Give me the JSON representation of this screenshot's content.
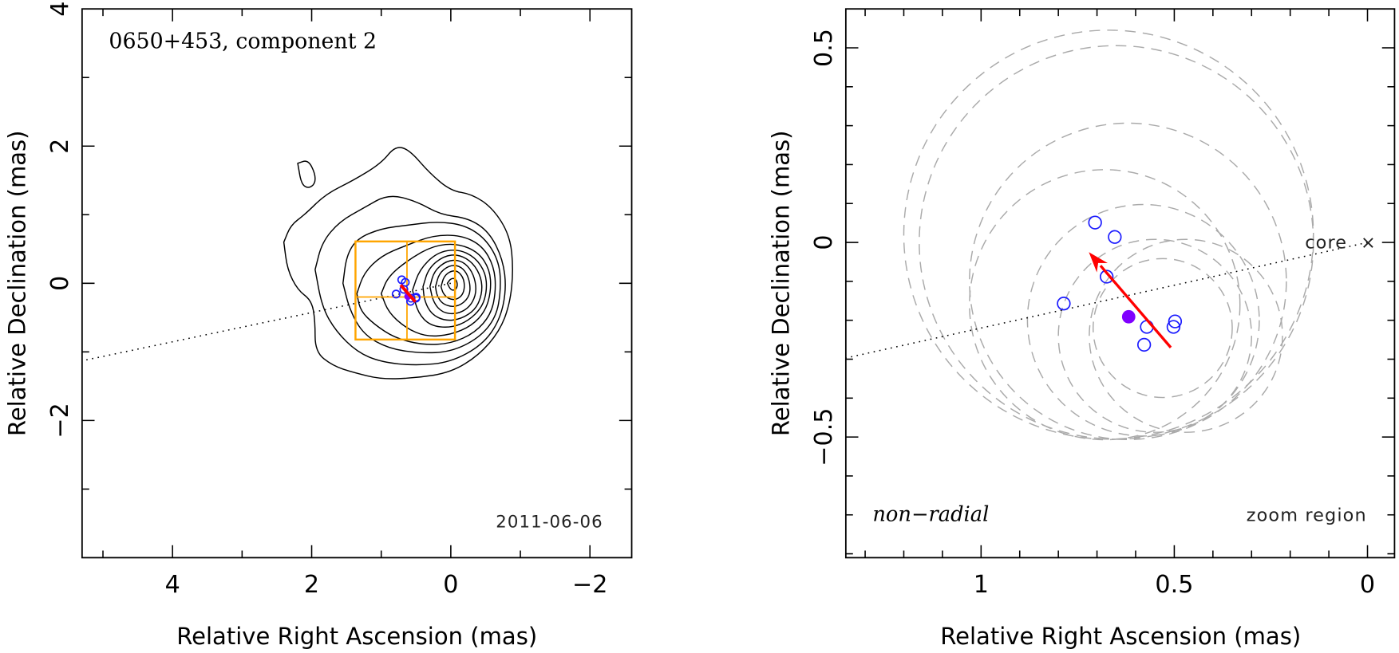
{
  "figure": {
    "left_panel": {
      "title": "0650+453, component 2",
      "date": "2011-06-06",
      "xlabel": "Relative Right Ascension (mas)",
      "ylabel": "Relative Declination (mas)"
    },
    "right_panel": {
      "annotation_left": "non−radial",
      "annotation_right": "zoom region",
      "core_label": "core",
      "core_marker": "×",
      "xlabel": "Relative Right Ascension (mas)",
      "ylabel": "Relative Declination (mas)"
    }
  },
  "colors": {
    "zoom_box": "#ffa500",
    "epoch_circles": "#1a1aff",
    "mean_position": "#8000ff",
    "velocity_arrow": "#ff0000",
    "error_circles": "#aaaaaa",
    "contours": "#000000"
  },
  "chart_data": [
    {
      "type": "contour",
      "title": "0650+453, component 2",
      "annotation": "2011-06-06",
      "xlabel": "Relative Right Ascension (mas)",
      "ylabel": "Relative Declination (mas)",
      "xlim": [
        5.3,
        -2.6
      ],
      "ylim": [
        -4.0,
        4.0
      ],
      "xticks": [
        4,
        2,
        0,
        -2
      ],
      "xtick_labels": [
        "4",
        "2",
        "0",
        "−2"
      ],
      "yticks": [
        -2,
        0,
        2,
        4
      ],
      "ytick_labels": [
        "−2",
        "0",
        "2",
        "4"
      ],
      "x_minor_step": 1,
      "y_minor_step": 1,
      "grid": false,
      "zoom_box": {
        "x": [
          1.37,
          -0.06
        ],
        "y": [
          -0.82,
          0.61
        ],
        "cross_x": 0.63,
        "cross_y": -0.2
      },
      "jet_direction_line": {
        "from": [
          0.0,
          0.0
        ],
        "to": [
          5.3,
          -1.13
        ]
      },
      "contours_approx": [
        {
          "level": 1,
          "points": [
            [
              2.4,
              0.6
            ],
            [
              2.3,
              0.85
            ],
            [
              2.1,
              1.0
            ],
            [
              1.8,
              1.3
            ],
            [
              1.4,
              1.5
            ],
            [
              1.0,
              1.75
            ],
            [
              0.8,
              2.0
            ],
            [
              0.6,
              1.95
            ],
            [
              0.3,
              1.6
            ],
            [
              0.0,
              1.35
            ],
            [
              -0.3,
              1.3
            ],
            [
              -0.6,
              1.1
            ],
            [
              -0.85,
              0.7
            ],
            [
              -0.9,
              0.2
            ],
            [
              -0.85,
              -0.3
            ],
            [
              -0.7,
              -0.7
            ],
            [
              -0.4,
              -1.05
            ],
            [
              0.0,
              -1.3
            ],
            [
              0.5,
              -1.38
            ],
            [
              1.0,
              -1.4
            ],
            [
              1.4,
              -1.3
            ],
            [
              1.7,
              -1.2
            ],
            [
              1.95,
              -1.0
            ],
            [
              1.95,
              -0.55
            ],
            [
              2.0,
              -0.25
            ],
            [
              2.2,
              -0.1
            ],
            [
              2.35,
              0.2
            ],
            [
              2.4,
              0.6
            ]
          ]
        },
        {
          "level": 2,
          "points": [
            [
              1.95,
              0.2
            ],
            [
              1.85,
              0.6
            ],
            [
              1.6,
              0.9
            ],
            [
              1.25,
              1.1
            ],
            [
              0.9,
              1.3
            ],
            [
              0.5,
              1.2
            ],
            [
              0.15,
              1.0
            ],
            [
              -0.25,
              0.95
            ],
            [
              -0.55,
              0.75
            ],
            [
              -0.75,
              0.35
            ],
            [
              -0.8,
              -0.1
            ],
            [
              -0.7,
              -0.55
            ],
            [
              -0.45,
              -0.9
            ],
            [
              0.0,
              -1.15
            ],
            [
              0.5,
              -1.2
            ],
            [
              1.0,
              -1.15
            ],
            [
              1.35,
              -1.0
            ],
            [
              1.65,
              -0.7
            ],
            [
              1.85,
              -0.35
            ],
            [
              1.95,
              0.2
            ]
          ]
        },
        {
          "level": 3,
          "points": [
            [
              1.55,
              0.0
            ],
            [
              1.5,
              0.4
            ],
            [
              1.35,
              0.65
            ],
            [
              1.0,
              0.8
            ],
            [
              0.6,
              0.85
            ],
            [
              0.2,
              0.9
            ],
            [
              -0.2,
              0.85
            ],
            [
              -0.5,
              0.65
            ],
            [
              -0.7,
              0.3
            ],
            [
              -0.72,
              -0.1
            ],
            [
              -0.65,
              -0.5
            ],
            [
              -0.4,
              -0.8
            ],
            [
              0.0,
              -1.0
            ],
            [
              0.45,
              -1.02
            ],
            [
              0.9,
              -0.95
            ],
            [
              1.25,
              -0.75
            ],
            [
              1.45,
              -0.4
            ],
            [
              1.55,
              0.0
            ]
          ]
        },
        {
          "level": 4,
          "points": [
            [
              1.35,
              -0.15
            ],
            [
              1.25,
              0.15
            ],
            [
              1.0,
              0.4
            ],
            [
              0.65,
              0.55
            ],
            [
              0.25,
              0.7
            ],
            [
              -0.15,
              0.7
            ],
            [
              -0.45,
              0.55
            ],
            [
              -0.62,
              0.25
            ],
            [
              -0.65,
              -0.1
            ],
            [
              -0.58,
              -0.45
            ],
            [
              -0.35,
              -0.72
            ],
            [
              0.0,
              -0.88
            ],
            [
              0.4,
              -0.9
            ],
            [
              0.8,
              -0.8
            ],
            [
              1.1,
              -0.6
            ],
            [
              1.3,
              -0.4
            ],
            [
              1.35,
              -0.15
            ]
          ]
        },
        {
          "level": 5,
          "points": [
            [
              1.0,
              -0.15
            ],
            [
              0.9,
              0.1
            ],
            [
              0.6,
              0.35
            ],
            [
              0.25,
              0.55
            ],
            [
              -0.1,
              0.58
            ],
            [
              -0.4,
              0.45
            ],
            [
              -0.56,
              0.2
            ],
            [
              -0.58,
              -0.1
            ],
            [
              -0.5,
              -0.4
            ],
            [
              -0.3,
              -0.62
            ],
            [
              0.0,
              -0.75
            ],
            [
              0.35,
              -0.78
            ],
            [
              0.65,
              -0.65
            ],
            [
              0.9,
              -0.42
            ],
            [
              1.0,
              -0.15
            ]
          ]
        },
        {
          "level": 6,
          "points": [
            [
              0.55,
              -0.1
            ],
            [
              0.45,
              0.2
            ],
            [
              0.2,
              0.45
            ],
            [
              -0.1,
              0.5
            ],
            [
              -0.35,
              0.38
            ],
            [
              -0.5,
              0.15
            ],
            [
              -0.52,
              -0.1
            ],
            [
              -0.45,
              -0.35
            ],
            [
              -0.25,
              -0.55
            ],
            [
              0.0,
              -0.65
            ],
            [
              0.3,
              -0.62
            ],
            [
              0.48,
              -0.42
            ],
            [
              0.55,
              -0.1
            ]
          ]
        },
        {
          "level": 7,
          "points": [
            [
              0.4,
              -0.05
            ],
            [
              0.32,
              0.22
            ],
            [
              0.1,
              0.4
            ],
            [
              -0.12,
              0.42
            ],
            [
              -0.32,
              0.3
            ],
            [
              -0.44,
              0.08
            ],
            [
              -0.45,
              -0.15
            ],
            [
              -0.36,
              -0.38
            ],
            [
              -0.15,
              -0.52
            ],
            [
              0.08,
              -0.55
            ],
            [
              0.28,
              -0.45
            ],
            [
              0.38,
              -0.25
            ],
            [
              0.4,
              -0.05
            ]
          ]
        },
        {
          "level": 8,
          "points": [
            [
              0.3,
              -0.05
            ],
            [
              0.24,
              0.18
            ],
            [
              0.06,
              0.33
            ],
            [
              -0.13,
              0.34
            ],
            [
              -0.28,
              0.22
            ],
            [
              -0.36,
              0.02
            ],
            [
              -0.36,
              -0.18
            ],
            [
              -0.26,
              -0.36
            ],
            [
              -0.08,
              -0.45
            ],
            [
              0.12,
              -0.43
            ],
            [
              0.25,
              -0.28
            ],
            [
              0.3,
              -0.05
            ]
          ]
        },
        {
          "level": 9,
          "points": [
            [
              0.22,
              -0.05
            ],
            [
              0.17,
              0.14
            ],
            [
              0.03,
              0.26
            ],
            [
              -0.12,
              0.26
            ],
            [
              -0.23,
              0.15
            ],
            [
              -0.28,
              -0.02
            ],
            [
              -0.27,
              -0.18
            ],
            [
              -0.17,
              -0.3
            ],
            [
              -0.03,
              -0.35
            ],
            [
              0.12,
              -0.3
            ],
            [
              0.2,
              -0.18
            ],
            [
              0.22,
              -0.05
            ]
          ]
        },
        {
          "level": 10,
          "points": [
            [
              0.14,
              -0.05
            ],
            [
              0.1,
              0.1
            ],
            [
              0.0,
              0.18
            ],
            [
              -0.1,
              0.18
            ],
            [
              -0.18,
              0.08
            ],
            [
              -0.2,
              -0.05
            ],
            [
              -0.17,
              -0.17
            ],
            [
              -0.08,
              -0.24
            ],
            [
              0.03,
              -0.23
            ],
            [
              0.11,
              -0.15
            ],
            [
              0.14,
              -0.05
            ]
          ]
        },
        {
          "level": 11,
          "points": [
            [
              0.05,
              0.0
            ],
            [
              0.0,
              0.07
            ],
            [
              -0.07,
              0.07
            ],
            [
              -0.1,
              -0.02
            ],
            [
              -0.07,
              -0.1
            ],
            [
              0.0,
              -0.1
            ],
            [
              0.05,
              0.0
            ]
          ]
        },
        {
          "level": 1,
          "points": [
            [
              2.2,
              1.75
            ],
            [
              2.05,
              1.8
            ],
            [
              1.95,
              1.6
            ],
            [
              1.95,
              1.45
            ],
            [
              2.05,
              1.38
            ],
            [
              2.15,
              1.45
            ],
            [
              2.2,
              1.75
            ]
          ]
        }
      ],
      "epoch_positions_approx": [
        [
          0.705,
          0.051
        ],
        [
          0.654,
          0.014
        ],
        [
          0.675,
          -0.088
        ],
        [
          0.786,
          -0.157
        ],
        [
          0.571,
          -0.217
        ],
        [
          0.578,
          -0.263
        ],
        [
          0.498,
          -0.203
        ],
        [
          0.502,
          -0.217
        ]
      ],
      "mean_position": [
        0.618,
        -0.191
      ],
      "velocity_arrow": {
        "from": [
          0.509,
          -0.27
        ],
        "to": [
          0.721,
          -0.025
        ]
      }
    },
    {
      "type": "scatter",
      "title": "zoom region",
      "annotation": "non−radial",
      "xlabel": "Relative Right Ascension (mas)",
      "ylabel": "Relative Declination (mas)",
      "xlim": [
        1.35,
        -0.07
      ],
      "ylim": [
        -0.81,
        0.6
      ],
      "xticks": [
        1,
        0.5,
        0
      ],
      "xtick_labels": [
        "1",
        "0.5",
        "0"
      ],
      "yticks": [
        -0.5,
        0,
        0.5
      ],
      "ytick_labels": [
        "−0.5",
        "0",
        "0.5"
      ],
      "x_minor_step": 0.1,
      "y_minor_step": 0.1,
      "grid": false,
      "core": [
        0.0,
        0.0
      ],
      "jet_direction_line": {
        "from": [
          0.0,
          0.0
        ],
        "to": [
          1.35,
          -0.297
        ]
      },
      "epoch_positions": [
        {
          "x": 0.705,
          "y": 0.051
        },
        {
          "x": 0.654,
          "y": 0.014
        },
        {
          "x": 0.675,
          "y": -0.088
        },
        {
          "x": 0.786,
          "y": -0.157
        },
        {
          "x": 0.571,
          "y": -0.217
        },
        {
          "x": 0.578,
          "y": -0.263
        },
        {
          "x": 0.498,
          "y": -0.203
        },
        {
          "x": 0.502,
          "y": -0.217
        }
      ],
      "mean_position": {
        "x": 0.618,
        "y": -0.191
      },
      "velocity_arrow": {
        "from": [
          0.509,
          -0.27
        ],
        "to": [
          0.721,
          -0.025
        ]
      },
      "error_circles": [
        {
          "x": 0.67,
          "y": 0.02,
          "r": 0.53
        },
        {
          "x": 0.65,
          "y": 0.0,
          "r": 0.51
        },
        {
          "x": 0.62,
          "y": -0.1,
          "r": 0.41
        },
        {
          "x": 0.68,
          "y": -0.16,
          "r": 0.35
        },
        {
          "x": 0.58,
          "y": -0.2,
          "r": 0.3
        },
        {
          "x": 0.55,
          "y": -0.24,
          "r": 0.25
        },
        {
          "x": 0.47,
          "y": -0.24,
          "r": 0.25
        },
        {
          "x": 0.53,
          "y": -0.22,
          "r": 0.18
        }
      ]
    }
  ]
}
